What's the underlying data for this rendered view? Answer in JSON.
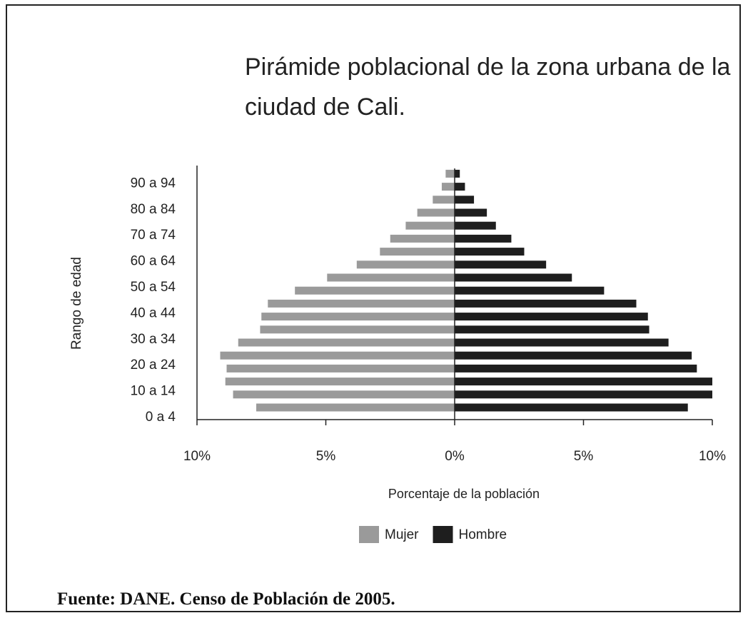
{
  "chart_data": {
    "type": "pyramid",
    "title": "Pirámide poblacional de la zona urbana de la ciudad de Cali.",
    "source": "Fuente: DANE. Censo de Población de 2005.",
    "x_label": "Porcentaje de la población",
    "y_label": "Rango de edad",
    "categories": [
      "0 a 4",
      null,
      "10 a 14",
      null,
      "20 a 24",
      null,
      "30 a 34",
      null,
      "40 a 44",
      null,
      "50 a 54",
      null,
      "60 a 64",
      null,
      "70 a 74",
      null,
      "80 a 84",
      null,
      "90 a 94"
    ],
    "series": [
      {
        "name": "Mujer",
        "color": "#9a9a9a",
        "side": "left",
        "values": [
          7.7,
          8.6,
          8.9,
          8.85,
          9.1,
          8.4,
          7.55,
          7.5,
          7.25,
          6.2,
          4.95,
          3.8,
          2.9,
          2.5,
          1.9,
          1.45,
          0.85,
          0.5,
          0.35
        ]
      },
      {
        "name": "Hombre",
        "color": "#1e1e1e",
        "side": "right",
        "values": [
          9.05,
          10.0,
          10.0,
          9.4,
          9.2,
          8.3,
          7.55,
          7.5,
          7.05,
          5.8,
          4.55,
          3.55,
          2.7,
          2.2,
          1.6,
          1.25,
          0.75,
          0.4,
          0.2
        ]
      }
    ],
    "xlim": [
      -10,
      10
    ],
    "xticks": [
      {
        "value": -10,
        "label": "10%"
      },
      {
        "value": -5,
        "label": "5%"
      },
      {
        "value": 0,
        "label": "0%"
      },
      {
        "value": 5,
        "label": "5%"
      },
      {
        "value": 10,
        "label": "10%"
      }
    ]
  }
}
